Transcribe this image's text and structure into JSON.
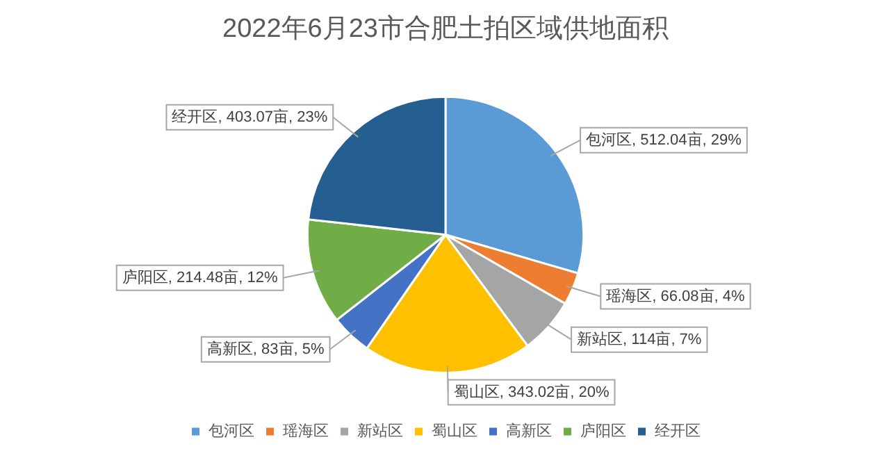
{
  "chart_data": {
    "type": "pie",
    "title": "2022年6月23市合肥土拍区域供地面积",
    "categories": [
      "包河区",
      "瑶海区",
      "新站区",
      "蜀山区",
      "高新区",
      "庐阳区",
      "经开区"
    ],
    "values": [
      512.04,
      66.08,
      114,
      343.02,
      83,
      214.48,
      403.07
    ],
    "colors": [
      "#5b9bd5",
      "#ed7d31",
      "#a5a5a5",
      "#ffc000",
      "#4472c4",
      "#70ad47",
      "#255e91"
    ],
    "value_labels": [
      "包河区, 512.04亩, 29%",
      "瑶海区, 66.08亩, 4%",
      "新站区, 114亩, 7%",
      "蜀山区, 343.02亩, 20%",
      "高新区, 83亩, 5%",
      "庐阳区, 214.48亩, 12%",
      "经开区, 403.07亩, 23%"
    ],
    "legend": "bottom"
  }
}
